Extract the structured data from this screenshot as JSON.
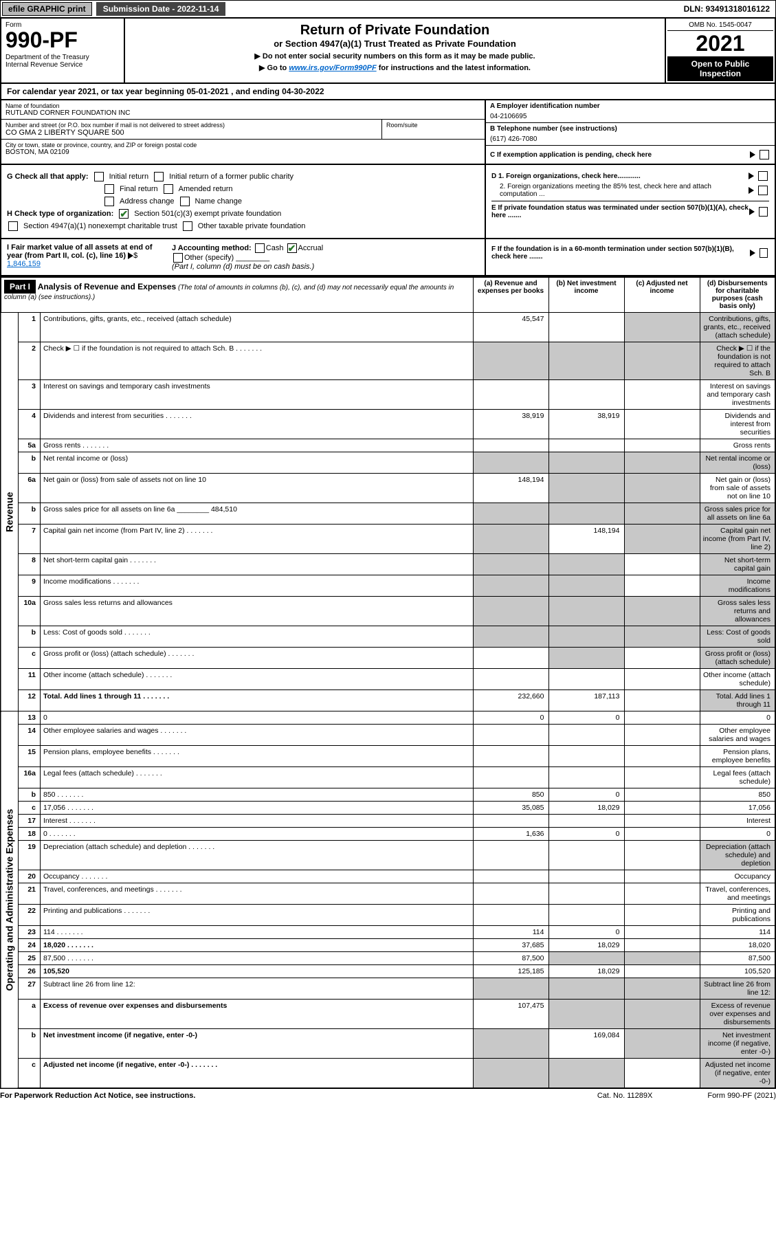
{
  "topbar": {
    "efile": "efile GRAPHIC print",
    "submission": "Submission Date - 2022-11-14",
    "dln": "DLN: 93491318016122"
  },
  "header": {
    "form_label": "Form",
    "form_no": "990-PF",
    "dept": "Department of the Treasury\nInternal Revenue Service",
    "title": "Return of Private Foundation",
    "subtitle": "or Section 4947(a)(1) Trust Treated as Private Foundation",
    "instr1": "▶ Do not enter social security numbers on this form as it may be made public.",
    "instr2_pre": "▶ Go to ",
    "instr2_link": "www.irs.gov/Form990PF",
    "instr2_post": " for instructions and the latest information.",
    "omb": "OMB No. 1545-0047",
    "year": "2021",
    "open": "Open to Public Inspection"
  },
  "calyear": "For calendar year 2021, or tax year beginning 05-01-2021             , and ending 04-30-2022",
  "info": {
    "name_label": "Name of foundation",
    "name": "RUTLAND CORNER FOUNDATION INC",
    "addr_label": "Number and street (or P.O. box number if mail is not delivered to street address)",
    "addr": "CO GMA 2 LIBERTY SQUARE 500",
    "room_label": "Room/suite",
    "city_label": "City or town, state or province, country, and ZIP or foreign postal code",
    "city": "BOSTON, MA  02109",
    "a_label": "A Employer identification number",
    "a_val": "04-2106695",
    "b_label": "B Telephone number (see instructions)",
    "b_val": "(617) 426-7080",
    "c_label": "C If exemption application is pending, check here",
    "d1_label": "D 1. Foreign organizations, check here............",
    "d2_label": "2. Foreign organizations meeting the 85% test, check here and attach computation ...",
    "e_label": "E  If private foundation status was terminated under section 507(b)(1)(A), check here .......",
    "f_label": "F  If the foundation is in a 60-month termination under section 507(b)(1)(B), check here .......",
    "g_label": "G Check all that apply:",
    "g_opts": [
      "Initial return",
      "Initial return of a former public charity",
      "Final return",
      "Amended return",
      "Address change",
      "Name change"
    ],
    "h_label": "H Check type of organization:",
    "h_opt1": "Section 501(c)(3) exempt private foundation",
    "h_opt2": "Section 4947(a)(1) nonexempt charitable trust",
    "h_opt3": "Other taxable private foundation",
    "i_label": "I Fair market value of all assets at end of year (from Part II, col. (c), line 16)",
    "i_val": "1,846,159",
    "j_label": "J Accounting method:",
    "j_cash": "Cash",
    "j_accrual": "Accrual",
    "j_other": "Other (specify)",
    "j_note": "(Part I, column (d) must be on cash basis.)"
  },
  "part1": {
    "label": "Part I",
    "title": "Analysis of Revenue and Expenses",
    "title_note": "(The total of amounts in columns (b), (c), and (d) may not necessarily equal the amounts in column (a) (see instructions).)",
    "col_a": "(a)   Revenue and expenses per books",
    "col_b": "(b)   Net investment income",
    "col_c": "(c)   Adjusted net income",
    "col_d": "(d)   Disbursements for charitable purposes (cash basis only)",
    "side_rev": "Revenue",
    "side_exp": "Operating and Administrative Expenses"
  },
  "rows": [
    {
      "n": "1",
      "d": "Contributions, gifts, grants, etc., received (attach schedule)",
      "a": "45,547",
      "grey": [
        "c",
        "d"
      ]
    },
    {
      "n": "2",
      "d": "Check ▶ ☐ if the foundation is not required to attach Sch. B",
      "dots": true,
      "grey": [
        "a",
        "b",
        "c",
        "d"
      ]
    },
    {
      "n": "3",
      "d": "Interest on savings and temporary cash investments"
    },
    {
      "n": "4",
      "d": "Dividends and interest from securities",
      "dots": true,
      "a": "38,919",
      "b": "38,919"
    },
    {
      "n": "5a",
      "d": "Gross rents",
      "dots": true
    },
    {
      "n": "b",
      "d": "Net rental income or (loss)",
      "inline_blank": true,
      "grey": [
        "a",
        "b",
        "c",
        "d"
      ]
    },
    {
      "n": "6a",
      "d": "Net gain or (loss) from sale of assets not on line 10",
      "a": "148,194",
      "grey": [
        "b",
        "c"
      ]
    },
    {
      "n": "b",
      "d": "Gross sales price for all assets on line 6a",
      "inline_val": "484,510",
      "grey": [
        "a",
        "b",
        "c",
        "d"
      ]
    },
    {
      "n": "7",
      "d": "Capital gain net income (from Part IV, line 2)",
      "dots": true,
      "grey": [
        "a"
      ],
      "b": "148,194",
      "grey2": [
        "c",
        "d"
      ]
    },
    {
      "n": "8",
      "d": "Net short-term capital gain",
      "dots": true,
      "grey": [
        "a",
        "b",
        "d"
      ]
    },
    {
      "n": "9",
      "d": "Income modifications",
      "dots": true,
      "grey": [
        "a",
        "b",
        "d"
      ]
    },
    {
      "n": "10a",
      "d": "Gross sales less returns and allowances",
      "inline_blank": true,
      "grey": [
        "a",
        "b",
        "c",
        "d"
      ]
    },
    {
      "n": "b",
      "d": "Less: Cost of goods sold",
      "dots": true,
      "inline_blank": true,
      "grey": [
        "a",
        "b",
        "c",
        "d"
      ]
    },
    {
      "n": "c",
      "d": "Gross profit or (loss) (attach schedule)",
      "dots": true,
      "grey": [
        "b",
        "d"
      ]
    },
    {
      "n": "11",
      "d": "Other income (attach schedule)",
      "dots": true
    },
    {
      "n": "12",
      "d": "Total. Add lines 1 through 11",
      "dots": true,
      "bold": true,
      "a": "232,660",
      "b": "187,113",
      "grey": [
        "d"
      ]
    },
    {
      "n": "13",
      "d": "0",
      "a": "0",
      "b": "0"
    },
    {
      "n": "14",
      "d": "Other employee salaries and wages",
      "dots": true
    },
    {
      "n": "15",
      "d": "Pension plans, employee benefits",
      "dots": true
    },
    {
      "n": "16a",
      "d": "Legal fees (attach schedule)",
      "dots": true
    },
    {
      "n": "b",
      "d": "850",
      "dots": true,
      "a": "850",
      "b": "0"
    },
    {
      "n": "c",
      "d": "17,056",
      "dots": true,
      "a": "35,085",
      "b": "18,029"
    },
    {
      "n": "17",
      "d": "Interest",
      "dots": true
    },
    {
      "n": "18",
      "d": "0",
      "dots": true,
      "a": "1,636",
      "b": "0"
    },
    {
      "n": "19",
      "d": "Depreciation (attach schedule) and depletion",
      "dots": true,
      "grey": [
        "d"
      ]
    },
    {
      "n": "20",
      "d": "Occupancy",
      "dots": true
    },
    {
      "n": "21",
      "d": "Travel, conferences, and meetings",
      "dots": true
    },
    {
      "n": "22",
      "d": "Printing and publications",
      "dots": true
    },
    {
      "n": "23",
      "d": "114",
      "dots": true,
      "a": "114",
      "b": "0"
    },
    {
      "n": "24",
      "d": "18,020",
      "dots": true,
      "bold": true,
      "a": "37,685",
      "b": "18,029"
    },
    {
      "n": "25",
      "d": "87,500",
      "dots": true,
      "a": "87,500",
      "grey": [
        "b",
        "c"
      ]
    },
    {
      "n": "26",
      "d": "105,520",
      "bold": true,
      "a": "125,185",
      "b": "18,029"
    },
    {
      "n": "27",
      "d": "Subtract line 26 from line 12:",
      "grey": [
        "a",
        "b",
        "c",
        "d"
      ]
    },
    {
      "n": "a",
      "d": "Excess of revenue over expenses and disbursements",
      "bold": true,
      "a": "107,475",
      "grey": [
        "b",
        "c",
        "d"
      ]
    },
    {
      "n": "b",
      "d": "Net investment income (if negative, enter -0-)",
      "bold": true,
      "grey": [
        "a"
      ],
      "b": "169,084",
      "grey2": [
        "c",
        "d"
      ]
    },
    {
      "n": "c",
      "d": "Adjusted net income (if negative, enter -0-)",
      "dots": true,
      "bold": true,
      "grey": [
        "a",
        "b",
        "d"
      ]
    }
  ],
  "footer": {
    "left": "For Paperwork Reduction Act Notice, see instructions.",
    "mid": "Cat. No. 11289X",
    "right": "Form 990-PF (2021)"
  }
}
